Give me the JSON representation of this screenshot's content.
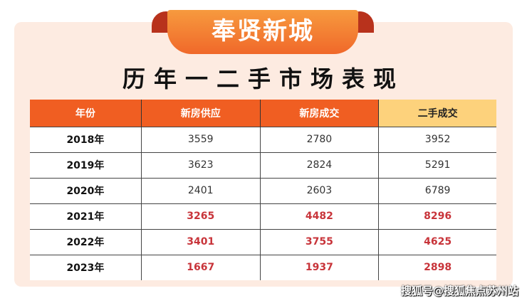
{
  "badge": "奉贤新城",
  "title": "历年一二手市场表现",
  "table": {
    "headers": [
      "年份",
      "新房供应",
      "新房成交",
      "二手成交"
    ],
    "rows": [
      {
        "year": "2018年",
        "supply": "3559",
        "new_deal": "2780",
        "second_deal": "3952",
        "highlight": false
      },
      {
        "year": "2019年",
        "supply": "3623",
        "new_deal": "2824",
        "second_deal": "5291",
        "highlight": false
      },
      {
        "year": "2020年",
        "supply": "2401",
        "new_deal": "2603",
        "second_deal": "6789",
        "highlight": false
      },
      {
        "year": "2021年",
        "supply": "3265",
        "new_deal": "4482",
        "second_deal": "8296",
        "highlight": true
      },
      {
        "year": "2022年",
        "supply": "3401",
        "new_deal": "3755",
        "second_deal": "4625",
        "highlight": true
      },
      {
        "year": "2023年",
        "supply": "1667",
        "new_deal": "1937",
        "second_deal": "2898",
        "highlight": true
      }
    ]
  },
  "watermark": "搜狐号@搜狐焦点苏州站",
  "colors": {
    "header": "#f05e22",
    "header_highlight": "#fdd27c",
    "highlight_text": "#c8343a",
    "panel": "#fdebe1"
  }
}
